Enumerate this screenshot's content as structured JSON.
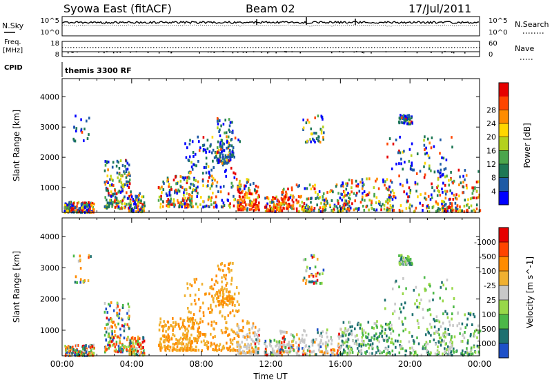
{
  "header": {
    "station": "Syowa East (fitACF)",
    "beam": "Beam 02",
    "date": "17/Jul/2011"
  },
  "panels": {
    "nsky": {
      "left_label": "N.Sky",
      "right_label": "N.Search",
      "left_ticks": [
        "10^5",
        "10^0"
      ],
      "right_ticks": [
        "10^5",
        "10^0"
      ]
    },
    "freq": {
      "left_label_1": "Freq.",
      "left_label_2": "[MHz]",
      "right_label": "Nave",
      "left_ticks": [
        "18",
        "8"
      ],
      "right_ticks": [
        "60",
        "0"
      ]
    },
    "cpid": {
      "label": "CPID",
      "value": "themis 3300 RF"
    }
  },
  "colors": {
    "power_scale": [
      "#0000ff",
      "#1e5aa5",
      "#1e7855",
      "#4ca64c",
      "#b4d11e",
      "#ffd700",
      "#ff8c00",
      "#ff4500",
      "#e60000"
    ],
    "velocity_scale": [
      "#1e50c8",
      "#1e7070",
      "#4cb848",
      "#98d848",
      "#c8c8c8",
      "#f0b030",
      "#ff8c00",
      "#ff4500",
      "#e60000"
    ]
  },
  "chart_data": [
    {
      "type": "heatmap",
      "name": "power",
      "title": "",
      "xlabel": "Time UT",
      "ylabel": "Slant Range [km]",
      "x_ticks": [
        "00:00",
        "04:00",
        "08:00",
        "12:00",
        "16:00",
        "20:00",
        "00:00"
      ],
      "x_range_hours": [
        0,
        24
      ],
      "y_ticks": [
        1000,
        2000,
        3000,
        4000
      ],
      "ylim": [
        180,
        4600
      ],
      "colorbar": {
        "label": "Power [dB]",
        "ticks": [
          4,
          8,
          12,
          16,
          20,
          24,
          28
        ],
        "range": [
          0,
          32
        ]
      }
    },
    {
      "type": "heatmap",
      "name": "velocity",
      "title": "",
      "xlabel": "Time UT",
      "ylabel": "Slant Range [km]",
      "x_ticks": [
        "00:00",
        "04:00",
        "08:00",
        "12:00",
        "16:00",
        "20:00",
        "00:00"
      ],
      "x_range_hours": [
        0,
        24
      ],
      "y_ticks": [
        1000,
        2000,
        3000,
        4000
      ],
      "ylim": [
        180,
        4600
      ],
      "colorbar": {
        "label": "Velocity [m s^-1]",
        "ticks": [
          "1000",
          "500",
          "100",
          "25",
          "-25",
          "-100",
          "-500",
          "-1000"
        ]
      }
    }
  ]
}
